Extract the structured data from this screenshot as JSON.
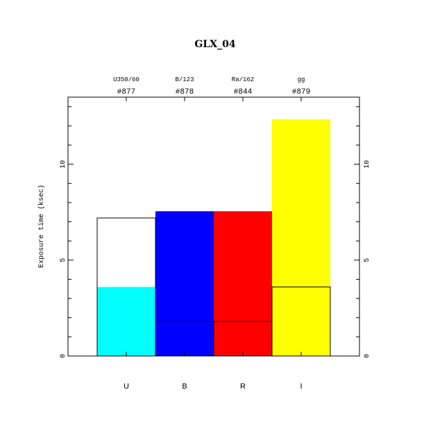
{
  "chart_data": {
    "type": "bar",
    "title": "GLX_04",
    "ylabel": "Exposure time (ksec)",
    "ylim": [
      0,
      13.5
    ],
    "yticks": [
      0,
      5,
      10
    ],
    "categories": [
      "U",
      "B",
      "R",
      "I"
    ],
    "filters": [
      "U350/60",
      "B/123",
      "Ra/162",
      "gg"
    ],
    "ids": [
      "#877",
      "#878",
      "#844",
      "#879"
    ],
    "bars": [
      {
        "category": "U",
        "value": 3.6,
        "color": "#00ffff",
        "outline": 7.2
      },
      {
        "category": "B",
        "value": 7.55,
        "color": "#0000ff",
        "outline": 1.8
      },
      {
        "category": "R",
        "value": 7.55,
        "color": "#ff0000",
        "outline": 1.8
      },
      {
        "category": "I",
        "value": 12.35,
        "color": "#ffff00",
        "outline": 3.6
      }
    ]
  }
}
